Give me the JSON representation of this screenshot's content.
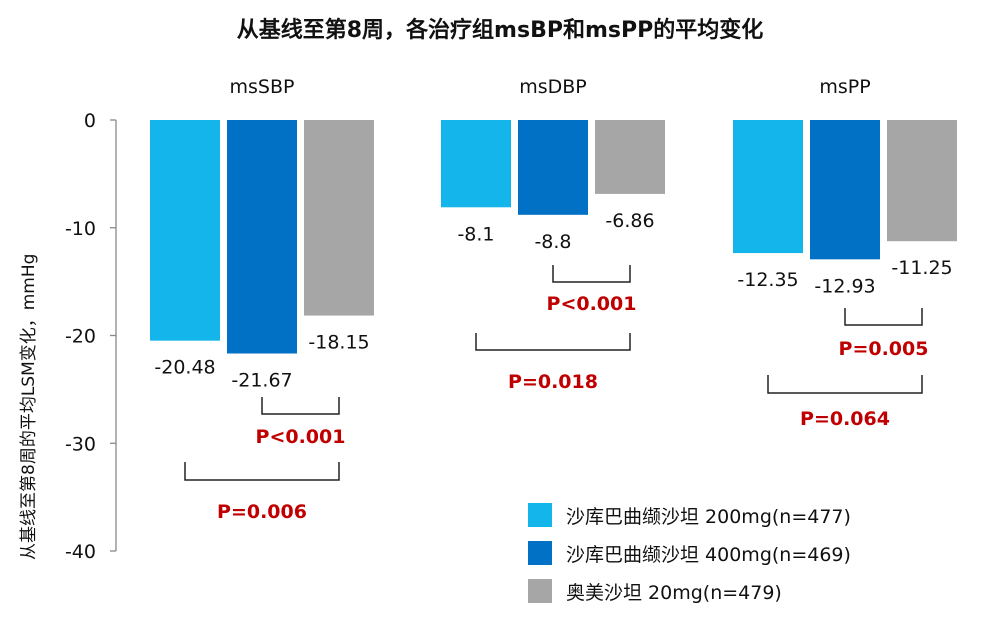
{
  "chart_data": {
    "type": "bar",
    "title": "从基线至第8周，各治疗组msBP和msPP的平均变化",
    "ylabel": "从基线至第8周的平均LSM变化，mmHg",
    "ylim": [
      -40,
      0
    ],
    "yticks": [
      "0",
      "-10",
      "-20",
      "-30",
      "-40"
    ],
    "ytick_values": [
      0,
      -10,
      -20,
      -30,
      -40
    ],
    "categories": [
      "msSBP",
      "msDBP",
      "msPP"
    ],
    "series": [
      {
        "name": "沙库巴曲缬沙坦 200mg(n=477)",
        "color": "#13b5ea",
        "values": [
          -20.48,
          -8.1,
          -12.35
        ],
        "labels": [
          "-20.48",
          "-8.1",
          "-12.35"
        ]
      },
      {
        "name": "沙库巴曲缬沙坦 400mg(n=469)",
        "color": "#0071c5",
        "values": [
          -21.67,
          -8.8,
          -12.93
        ],
        "labels": [
          "-21.67",
          "-8.8",
          "-12.93"
        ]
      },
      {
        "name": "奥美沙坦 20mg(n=479)",
        "color": "#a6a6a6",
        "values": [
          -18.15,
          -6.86,
          -11.25
        ],
        "labels": [
          "-18.15",
          "-6.86",
          "-11.25"
        ]
      }
    ],
    "annotations": [
      {
        "category": "msSBP",
        "compare": "400mg vs 奥美沙坦",
        "text": "P<0.001"
      },
      {
        "category": "msSBP",
        "compare": "200mg vs 奥美沙坦",
        "text": "P=0.006"
      },
      {
        "category": "msDBP",
        "compare": "400mg vs 奥美沙坦",
        "text": "P<0.001"
      },
      {
        "category": "msDBP",
        "compare": "200mg vs 奥美沙坦",
        "text": "P=0.018"
      },
      {
        "category": "msPP",
        "compare": "400mg vs 奥美沙坦",
        "text": "P=0.005"
      },
      {
        "category": "msPP",
        "compare": "200mg vs 奥美沙坦",
        "text": "P=0.064"
      }
    ],
    "annotation_color": "#c00000",
    "legend_position": "bottom-right"
  }
}
